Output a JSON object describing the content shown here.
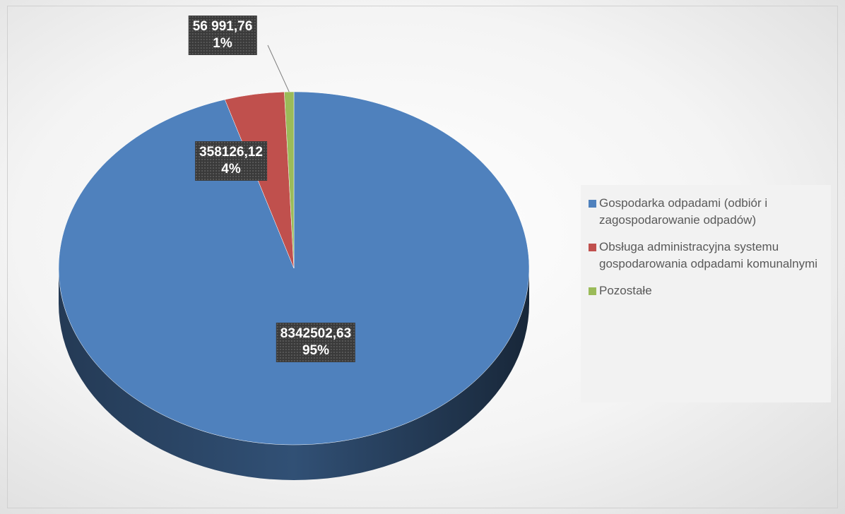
{
  "chart_data": {
    "type": "pie",
    "categories": [
      "Gospodarka odpadami (odbiór i zagospodarowanie odpadów)",
      "Obsługa administracyjna systemu gospodarowania odpadami komunalnymi",
      "Pozostałe"
    ],
    "values": [
      8342502.63,
      358126.12,
      56991.76
    ],
    "value_labels": [
      "8342502,63",
      "358126,12",
      "56 991,76"
    ],
    "percent_labels": [
      "95%",
      "4%",
      "1%"
    ],
    "colors": [
      "#4f81bd",
      "#c0504d",
      "#9bbb59"
    ],
    "legend": "right"
  }
}
